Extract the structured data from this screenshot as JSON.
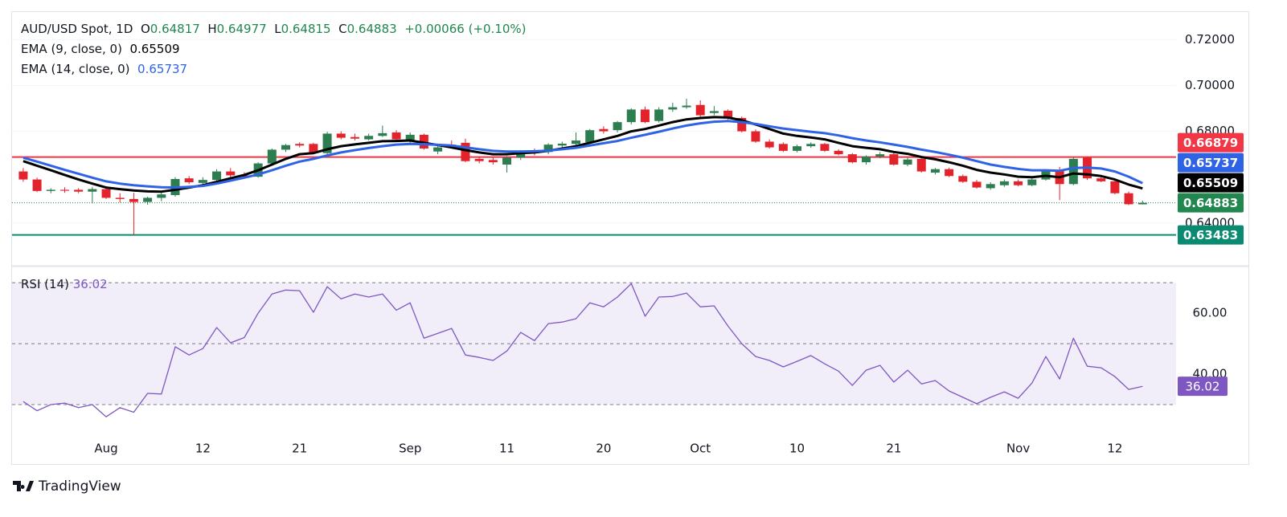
{
  "header": {
    "o_label": "O",
    "h_label": "H",
    "l_label": "L",
    "c_label": "C",
    "change": {
      "value": 0.00066,
      "label": "+0.00066"
    },
    "change_pct": {
      "value": 0.1,
      "label": "(+0.10%)"
    }
  },
  "chart_data": [
    {
      "type": "candlestick",
      "title": "AUD/USD Spot, 1D",
      "categories": [
        null,
        null,
        null,
        null,
        null,
        null,
        "Aug",
        null,
        null,
        null,
        null,
        null,
        null,
        "12",
        null,
        null,
        null,
        null,
        null,
        null,
        "21",
        null,
        null,
        null,
        null,
        null,
        null,
        null,
        "Sep",
        null,
        null,
        null,
        null,
        null,
        null,
        "11",
        null,
        null,
        null,
        null,
        null,
        null,
        "20",
        null,
        null,
        null,
        null,
        null,
        null,
        "Oct",
        null,
        null,
        null,
        null,
        null,
        null,
        "10",
        null,
        null,
        null,
        null,
        null,
        null,
        "21",
        null,
        null,
        null,
        null,
        null,
        null,
        null,
        null,
        "Nov",
        null,
        null,
        null,
        null,
        null,
        null,
        "12",
        null,
        null
      ],
      "ohlc": [
        [
          0.6625,
          0.664,
          0.658,
          0.659
        ],
        [
          0.659,
          0.6598,
          0.6535,
          0.654
        ],
        [
          0.654,
          0.6552,
          0.653,
          0.6545
        ],
        [
          0.6545,
          0.6556,
          0.6532,
          0.6541
        ],
        [
          0.6545,
          0.6552,
          0.653,
          0.6537
        ],
        [
          0.6537,
          0.6558,
          0.6486,
          0.6548
        ],
        [
          0.6548,
          0.656,
          0.6505,
          0.651
        ],
        [
          0.651,
          0.653,
          0.649,
          0.6505
        ],
        [
          0.6505,
          0.6532,
          0.6348,
          0.6492
        ],
        [
          0.6492,
          0.6515,
          0.648,
          0.651
        ],
        [
          0.651,
          0.6535,
          0.6495,
          0.6525
        ],
        [
          0.6522,
          0.66,
          0.6515,
          0.6592
        ],
        [
          0.6595,
          0.6605,
          0.657,
          0.6578
        ],
        [
          0.6575,
          0.66,
          0.6565,
          0.6588
        ],
        [
          0.6588,
          0.6635,
          0.658,
          0.6625
        ],
        [
          0.6625,
          0.664,
          0.66,
          0.6608
        ],
        [
          0.6608,
          0.6622,
          0.6595,
          0.6602
        ],
        [
          0.6602,
          0.6665,
          0.6598,
          0.666
        ],
        [
          0.666,
          0.6725,
          0.6655,
          0.672
        ],
        [
          0.672,
          0.6745,
          0.671,
          0.674
        ],
        [
          0.6745,
          0.6752,
          0.673,
          0.6738
        ],
        [
          0.6745,
          0.675,
          0.67,
          0.6705
        ],
        [
          0.6705,
          0.6798,
          0.67,
          0.679
        ],
        [
          0.679,
          0.68,
          0.6765,
          0.6772
        ],
        [
          0.6775,
          0.679,
          0.676,
          0.6768
        ],
        [
          0.6765,
          0.679,
          0.676,
          0.678
        ],
        [
          0.678,
          0.6825,
          0.6775,
          0.6792
        ],
        [
          0.6795,
          0.6805,
          0.676,
          0.6765
        ],
        [
          0.6762,
          0.6795,
          0.675,
          0.6785
        ],
        [
          0.6785,
          0.679,
          0.672,
          0.6725
        ],
        [
          0.6712,
          0.6738,
          0.67,
          0.673
        ],
        [
          0.6742,
          0.676,
          0.6725,
          0.6735
        ],
        [
          0.675,
          0.6768,
          0.6665,
          0.667
        ],
        [
          0.668,
          0.669,
          0.666,
          0.667
        ],
        [
          0.6675,
          0.6685,
          0.6655,
          0.6665
        ],
        [
          0.6655,
          0.6692,
          0.662,
          0.6685
        ],
        [
          0.6685,
          0.6718,
          0.6675,
          0.6712
        ],
        [
          0.6715,
          0.6725,
          0.6695,
          0.6705
        ],
        [
          0.671,
          0.6748,
          0.67,
          0.6742
        ],
        [
          0.6738,
          0.6755,
          0.673,
          0.6746
        ],
        [
          0.6745,
          0.6795,
          0.6738,
          0.676
        ],
        [
          0.6752,
          0.681,
          0.6745,
          0.6805
        ],
        [
          0.681,
          0.6822,
          0.679,
          0.68
        ],
        [
          0.6805,
          0.6845,
          0.6795,
          0.684
        ],
        [
          0.684,
          0.69,
          0.683,
          0.6895
        ],
        [
          0.6895,
          0.6908,
          0.6835,
          0.684
        ],
        [
          0.6845,
          0.6905,
          0.6838,
          0.6895
        ],
        [
          0.6895,
          0.6925,
          0.6885,
          0.6905
        ],
        [
          0.6905,
          0.6942,
          0.6898,
          0.6912
        ],
        [
          0.6915,
          0.6935,
          0.6862,
          0.687
        ],
        [
          0.688,
          0.691,
          0.687,
          0.6888
        ],
        [
          0.689,
          0.6895,
          0.685,
          0.6858
        ],
        [
          0.6858,
          0.6865,
          0.6795,
          0.68
        ],
        [
          0.68,
          0.6808,
          0.675,
          0.6755
        ],
        [
          0.6755,
          0.6765,
          0.6725,
          0.673
        ],
        [
          0.6745,
          0.6752,
          0.671,
          0.6715
        ],
        [
          0.6715,
          0.6742,
          0.6708,
          0.6735
        ],
        [
          0.6735,
          0.6752,
          0.6728,
          0.6745
        ],
        [
          0.6745,
          0.675,
          0.671,
          0.6715
        ],
        [
          0.6715,
          0.6722,
          0.6695,
          0.67
        ],
        [
          0.67,
          0.6705,
          0.666,
          0.6665
        ],
        [
          0.6665,
          0.6695,
          0.6655,
          0.669
        ],
        [
          0.669,
          0.671,
          0.6682,
          0.67
        ],
        [
          0.67,
          0.6705,
          0.665,
          0.6655
        ],
        [
          0.6655,
          0.6685,
          0.6648,
          0.6677
        ],
        [
          0.668,
          0.669,
          0.662,
          0.6625
        ],
        [
          0.662,
          0.664,
          0.6612,
          0.6635
        ],
        [
          0.6635,
          0.6642,
          0.66,
          0.6605
        ],
        [
          0.6605,
          0.6612,
          0.6575,
          0.658
        ],
        [
          0.658,
          0.6588,
          0.655,
          0.6555
        ],
        [
          0.6552,
          0.6578,
          0.6545,
          0.657
        ],
        [
          0.6565,
          0.659,
          0.6558,
          0.6582
        ],
        [
          0.6582,
          0.659,
          0.656,
          0.6565
        ],
        [
          0.6565,
          0.6598,
          0.656,
          0.659
        ],
        [
          0.659,
          0.6635,
          0.6585,
          0.663
        ],
        [
          0.663,
          0.6645,
          0.65,
          0.657
        ],
        [
          0.657,
          0.6688,
          0.6565,
          0.668
        ],
        [
          0.6685,
          0.669,
          0.6588,
          0.6595
        ],
        [
          0.6595,
          0.6602,
          0.6578,
          0.6582
        ],
        [
          0.6582,
          0.659,
          0.6525,
          0.653
        ],
        [
          0.653,
          0.6538,
          0.6478,
          0.6482
        ],
        [
          0.64817,
          0.64977,
          0.64815,
          0.64883
        ]
      ],
      "up_color": "#2c7d50",
      "down_color": "#e3232b",
      "series": [
        {
          "name": "EMA (9, close, 0)",
          "color": "#000000",
          "values": [
            0.667,
            0.665,
            0.663,
            0.661,
            0.659,
            0.6572,
            0.6555,
            0.6548,
            0.6542,
            0.6538,
            0.6537,
            0.6545,
            0.6555,
            0.6565,
            0.658,
            0.6595,
            0.661,
            0.663,
            0.6655,
            0.668,
            0.67,
            0.6705,
            0.6722,
            0.6735,
            0.6743,
            0.675,
            0.6757,
            0.6758,
            0.676,
            0.675,
            0.674,
            0.673,
            0.6718,
            0.6708,
            0.67,
            0.67,
            0.6705,
            0.6708,
            0.6715,
            0.6725,
            0.6735,
            0.675,
            0.6765,
            0.678,
            0.68,
            0.681,
            0.6825,
            0.684,
            0.6852,
            0.6858,
            0.6862,
            0.686,
            0.6848,
            0.683,
            0.681,
            0.679,
            0.678,
            0.6773,
            0.6765,
            0.675,
            0.6735,
            0.6728,
            0.6722,
            0.671,
            0.6702,
            0.6688,
            0.6678,
            0.6665,
            0.665,
            0.6632,
            0.662,
            0.6612,
            0.6602,
            0.66,
            0.6606,
            0.66,
            0.6616,
            0.6612,
            0.6605,
            0.659,
            0.6568,
            0.65509
          ]
        },
        {
          "name": "EMA (14, close, 0)",
          "color": "#2f63e6",
          "values": [
            0.6685,
            0.6668,
            0.665,
            0.6632,
            0.6615,
            0.6598,
            0.6582,
            0.6572,
            0.6565,
            0.656,
            0.6556,
            0.6555,
            0.6558,
            0.6562,
            0.6572,
            0.6585,
            0.6598,
            0.6612,
            0.663,
            0.665,
            0.6668,
            0.668,
            0.6695,
            0.6708,
            0.6718,
            0.6727,
            0.6735,
            0.6742,
            0.6745,
            0.6744,
            0.6741,
            0.6738,
            0.673,
            0.6722,
            0.6715,
            0.6712,
            0.6712,
            0.6713,
            0.6716,
            0.6722,
            0.6728,
            0.6738,
            0.6748,
            0.6758,
            0.6772,
            0.6785,
            0.6798,
            0.6812,
            0.6825,
            0.6835,
            0.6842,
            0.6845,
            0.684,
            0.6832,
            0.6822,
            0.6812,
            0.6805,
            0.6798,
            0.6792,
            0.6782,
            0.677,
            0.676,
            0.6752,
            0.6742,
            0.6732,
            0.672,
            0.671,
            0.6698,
            0.6685,
            0.667,
            0.6655,
            0.6645,
            0.6636,
            0.663,
            0.663,
            0.6628,
            0.664,
            0.6642,
            0.6638,
            0.6625,
            0.6602,
            0.65737
          ]
        }
      ],
      "hlines": [
        {
          "value": 0.66879,
          "color": "#f23645"
        },
        {
          "value": 0.63483,
          "color": "#0b8a72"
        }
      ],
      "last_color": "#22864f",
      "ylim": [
        0.6214,
        0.732
      ],
      "yticks": [
        {
          "value": 0.72,
          "label": "0.72000"
        },
        {
          "value": 0.7,
          "label": "0.70000"
        },
        {
          "value": 0.68,
          "label": "0.68000"
        },
        {
          "value": 0.64,
          "label": "0.64000"
        }
      ],
      "grid": true
    },
    {
      "type": "line",
      "series": [
        {
          "name": "RSI (14)",
          "color": "#7e57c2",
          "values": [
            31,
            28,
            30,
            30.5,
            29,
            30,
            26,
            29,
            27.5,
            33.7,
            33.5,
            49,
            46.3,
            48.4,
            55.3,
            50.3,
            52,
            60,
            66.3,
            67.6,
            67.4,
            60.3,
            68.7,
            64.7,
            66.3,
            65.3,
            66.3,
            61,
            63.4,
            51.8,
            53.4,
            55,
            46.3,
            45.5,
            44.5,
            47.6,
            53.7,
            51,
            56.6,
            57.1,
            58.2,
            63.4,
            62.1,
            65.3,
            69.7,
            59,
            65.3,
            65.5,
            66.6,
            62.1,
            62.4,
            55.8,
            50,
            45.8,
            44.5,
            42.4,
            44.2,
            46.1,
            43.4,
            41,
            36.3,
            41.3,
            42.9,
            37.4,
            41.3,
            36.8,
            37.9,
            34.5,
            32.4,
            30.3,
            32.4,
            34.2,
            32.1,
            37.1,
            45.8,
            38.4,
            51.8,
            42.6,
            42.1,
            39.2,
            35,
            36.02
          ]
        }
      ],
      "bands": [
        30,
        50,
        70
      ],
      "band_color": "#7e57c2",
      "ylim": [
        20,
        74
      ],
      "yticks": [
        {
          "value": 60,
          "label": "60.00"
        },
        {
          "value": 40,
          "label": "40.00"
        }
      ],
      "grid": false
    }
  ],
  "branding": "TradingView"
}
